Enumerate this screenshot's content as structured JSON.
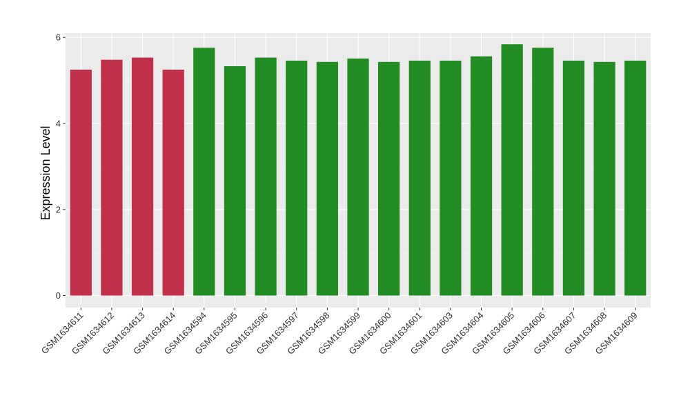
{
  "chart_data": {
    "type": "bar",
    "title": "",
    "xlabel": "",
    "ylabel": "Expression Level",
    "ylim": [
      -0.28,
      6.1
    ],
    "yticks": [
      0,
      2,
      4,
      6
    ],
    "ytick_labels": [
      "0",
      "2",
      "4",
      "6"
    ],
    "grid": true,
    "legend": "none",
    "categories": [
      "GSM1634611",
      "GSM1634612",
      "GSM1634613",
      "GSM1634614",
      "GSM1634594",
      "GSM1634595",
      "GSM1634596",
      "GSM1634597",
      "GSM1634598",
      "GSM1634599",
      "GSM1634600",
      "GSM1634601",
      "GSM1634603",
      "GSM1634604",
      "GSM1634605",
      "GSM1634606",
      "GSM1634607",
      "GSM1634608",
      "GSM1634609"
    ],
    "values": [
      5.25,
      5.48,
      5.53,
      5.25,
      5.76,
      5.33,
      5.53,
      5.46,
      5.43,
      5.51,
      5.43,
      5.46,
      5.46,
      5.56,
      5.84,
      5.76,
      5.46,
      5.43,
      5.46
    ],
    "groups": [
      "red",
      "red",
      "red",
      "red",
      "green",
      "green",
      "green",
      "green",
      "green",
      "green",
      "green",
      "green",
      "green",
      "green",
      "green",
      "green",
      "green",
      "green",
      "green"
    ],
    "colors": {
      "red": "#C0304A",
      "green": "#228B22",
      "panel": "#EBEBEB",
      "grid_major": "#FFFFFF",
      "grid_minor": "#F5F5F5"
    }
  }
}
